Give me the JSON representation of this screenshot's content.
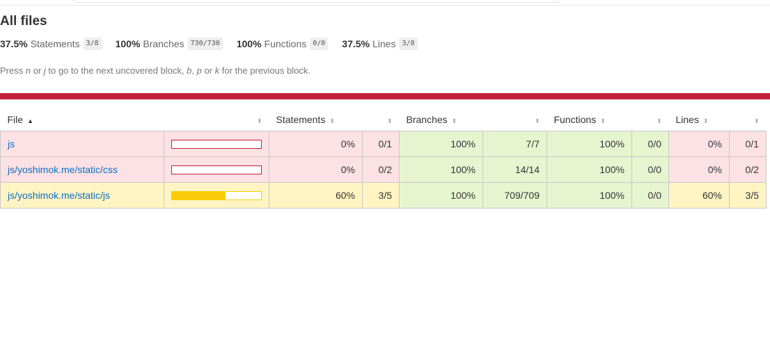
{
  "title": "All files",
  "summary": [
    {
      "pct": "37.5%",
      "label": "Statements",
      "fraction": "3/8"
    },
    {
      "pct": "100%",
      "label": "Branches",
      "fraction": "730/730"
    },
    {
      "pct": "100%",
      "label": "Functions",
      "fraction": "0/0"
    },
    {
      "pct": "37.5%",
      "label": "Lines",
      "fraction": "3/8"
    }
  ],
  "hint": {
    "t1": "Press ",
    "k1": "n",
    "t2": " or ",
    "k2": "j",
    "t3": " to go to the next uncovered block, ",
    "k3": "b",
    "t4": ", ",
    "k4": "p",
    "t5": " or ",
    "k5": "k",
    "t6": " for the previous block."
  },
  "colors": {
    "low": "#c21f39",
    "medium": "#f9cd0b",
    "high": "#4d9221"
  },
  "table": {
    "headers": {
      "file": "File",
      "statements": "Statements",
      "branches": "Branches",
      "functions": "Functions",
      "lines": "Lines"
    },
    "sort_icons": {
      "ascending": "▲",
      "unsorted": "⬍"
    },
    "rows": [
      {
        "file": "js",
        "level": "low",
        "bar_fraction": 0.0,
        "statements_pct": "0%",
        "statements_frac": "0/1",
        "branches_pct": "100%",
        "branches_frac": "7/7",
        "functions_pct": "100%",
        "functions_frac": "0/0",
        "lines_pct": "0%",
        "lines_frac": "0/1",
        "levels": {
          "statements": "low",
          "branches": "high",
          "functions": "high",
          "lines": "low"
        }
      },
      {
        "file": "js/yoshimok.me/static/css",
        "level": "low",
        "bar_fraction": 0.0,
        "statements_pct": "0%",
        "statements_frac": "0/2",
        "branches_pct": "100%",
        "branches_frac": "14/14",
        "functions_pct": "100%",
        "functions_frac": "0/0",
        "lines_pct": "0%",
        "lines_frac": "0/2",
        "levels": {
          "statements": "low",
          "branches": "high",
          "functions": "high",
          "lines": "low"
        }
      },
      {
        "file": "js/yoshimok.me/static/js",
        "level": "medium",
        "bar_fraction": 0.6,
        "statements_pct": "60%",
        "statements_frac": "3/5",
        "branches_pct": "100%",
        "branches_frac": "709/709",
        "functions_pct": "100%",
        "functions_frac": "0/0",
        "lines_pct": "60%",
        "lines_frac": "3/5",
        "levels": {
          "statements": "medium",
          "branches": "high",
          "functions": "high",
          "lines": "medium"
        }
      }
    ]
  }
}
